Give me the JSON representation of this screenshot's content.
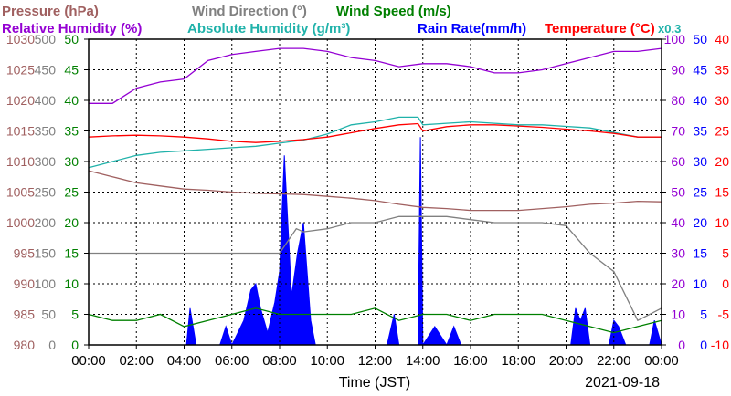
{
  "chart_data": {
    "type": "line",
    "title_rows": [
      [
        {
          "text": "Pressure (hPa)",
          "color": "#a06060"
        },
        {
          "text": "Wind Direction (°)",
          "color": "#808080"
        },
        {
          "text": "Wind Speed (m/s)",
          "color": "#008000"
        }
      ],
      [
        {
          "text": "Relative Humidity (%)",
          "color": "#9400d3"
        },
        {
          "text": "Absolute Humidity (g/m³)",
          "color": "#20b2aa"
        },
        {
          "text": "Rain Rate(mm/h)",
          "color": "#0000ff"
        },
        {
          "text": "Temperature (°C)",
          "color": "#ff0000"
        },
        {
          "text": "x0.3",
          "color": "#20b2aa"
        }
      ]
    ],
    "xlabel": "Time (JST)",
    "date": "2021-09-18",
    "x_ticks": [
      "00:00",
      "02:00",
      "04:00",
      "06:00",
      "08:00",
      "10:00",
      "12:00",
      "14:00",
      "16:00",
      "18:00",
      "20:00",
      "22:00",
      "00:00"
    ],
    "y_axes": {
      "pressure": {
        "color": "#a06060",
        "ticks": [
          "1030",
          "1025",
          "1020",
          "1015",
          "1010",
          "1005",
          "1000",
          "995",
          "990",
          "985",
          "980"
        ],
        "range": [
          980,
          1030
        ]
      },
      "wind_direction": {
        "color": "#808080",
        "ticks": [
          "500",
          "450",
          "400",
          "350",
          "300",
          "250",
          "200",
          "150",
          "100",
          "50",
          "0"
        ],
        "range": [
          0,
          500
        ]
      },
      "wind_speed": {
        "color": "#008000",
        "ticks": [
          "50",
          "45",
          "40",
          "35",
          "30",
          "25",
          "20",
          "15",
          "10",
          "5",
          "0"
        ],
        "range": [
          0,
          50
        ]
      },
      "humidity": {
        "color": "#9400d3",
        "ticks": [
          "100",
          "90",
          "80",
          "70",
          "60",
          "50",
          "40",
          "30",
          "20",
          "10",
          "0"
        ],
        "range": [
          0,
          100
        ]
      },
      "rain_rate": {
        "color": "#0000ff",
        "ticks": [
          "50",
          "45",
          "40",
          "35",
          "30",
          "25",
          "20",
          "15",
          "10",
          "5",
          "0"
        ],
        "range": [
          0,
          50
        ]
      },
      "temperature": {
        "color": "#ff0000",
        "ticks": [
          "40",
          "35",
          "30",
          "25",
          "20",
          "15",
          "10",
          "5",
          "0",
          "-5",
          "-10"
        ],
        "range": [
          -10,
          40
        ]
      }
    },
    "x_range_hours": [
      0,
      24
    ],
    "grid": true,
    "series": [
      {
        "name": "Pressure",
        "color": "#a06060",
        "axis": "pressure",
        "x": [
          0,
          1,
          2,
          3,
          4,
          5,
          6,
          7,
          8,
          9,
          10,
          11,
          12,
          13,
          14,
          15,
          16,
          17,
          18,
          19,
          20,
          21,
          22,
          23,
          24
        ],
        "y": [
          1008.5,
          1007.5,
          1006.5,
          1006,
          1005.5,
          1005.3,
          1005,
          1004.8,
          1004.7,
          1004.6,
          1004.3,
          1004,
          1003.6,
          1003,
          1002.5,
          1002.3,
          1002,
          1002,
          1002,
          1002.3,
          1002.6,
          1003,
          1003.2,
          1003.5,
          1003.4
        ]
      },
      {
        "name": "Relative Humidity",
        "color": "#9400d3",
        "axis": "humidity",
        "x": [
          0,
          1,
          2,
          3,
          4,
          5,
          5.5,
          6,
          7,
          8,
          9,
          10,
          11,
          12,
          12.5,
          13,
          14,
          15,
          16,
          17,
          18,
          19,
          20,
          21,
          22,
          23,
          24
        ],
        "y": [
          79,
          79,
          84,
          86,
          87,
          93,
          94,
          95,
          96,
          97,
          97,
          96,
          94,
          93,
          92,
          91,
          92,
          92,
          91,
          89,
          89,
          90,
          92,
          94,
          96,
          96,
          97
        ]
      },
      {
        "name": "Absolute Humidity",
        "color": "#20b2aa",
        "axis": "humidity",
        "x": [
          0,
          1,
          2,
          3,
          4,
          5,
          6,
          7,
          8,
          9,
          10,
          11,
          12,
          13,
          13.8,
          14,
          15,
          16,
          17,
          18,
          19,
          20,
          21,
          22,
          23,
          24
        ],
        "y": [
          58,
          60,
          62,
          63,
          63.5,
          64,
          64.5,
          65,
          66,
          67,
          69,
          72,
          73,
          74.5,
          74.5,
          72,
          72.5,
          73,
          72.5,
          72,
          72,
          71.5,
          71,
          69.5,
          68,
          68
        ]
      },
      {
        "name": "Temperature",
        "color": "#ff0000",
        "axis": "temperature",
        "x": [
          0,
          1,
          2,
          3,
          4,
          5,
          6,
          7,
          8,
          9,
          10,
          11,
          12,
          13,
          13.8,
          14,
          15,
          16,
          17,
          18,
          19,
          20,
          21,
          22,
          23,
          24
        ],
        "y": [
          24,
          24.2,
          24.3,
          24.2,
          24,
          23.7,
          23.3,
          23.1,
          23.3,
          23.6,
          24,
          24.7,
          25.4,
          26,
          26.2,
          25,
          25.7,
          26,
          26,
          25.8,
          25.6,
          25.3,
          25,
          24.6,
          24,
          24
        ]
      },
      {
        "name": "Wind Direction",
        "color": "#808080",
        "axis": "wind_direction",
        "x": [
          0,
          1,
          2,
          3,
          4,
          5,
          6,
          7,
          8,
          8.7,
          9,
          10,
          11,
          12,
          13,
          14,
          15,
          16,
          17,
          18,
          19,
          20,
          21,
          22,
          23,
          24
        ],
        "y": [
          150,
          150,
          150,
          150,
          150,
          150,
          150,
          150,
          150,
          190,
          185,
          190,
          200,
          200,
          210,
          210,
          210,
          205,
          200,
          200,
          200,
          195,
          150,
          120,
          40,
          60
        ]
      },
      {
        "name": "Wind Speed",
        "color": "#008000",
        "axis": "wind_speed",
        "x": [
          0,
          1,
          2,
          3,
          4,
          5,
          6,
          7,
          8,
          9,
          10,
          11,
          12,
          13,
          14,
          15,
          16,
          17,
          18,
          19,
          20,
          21,
          22,
          23,
          24
        ],
        "y": [
          5,
          4,
          4,
          5,
          3,
          4,
          5,
          6,
          5,
          5,
          5,
          5,
          6,
          4,
          5,
          5,
          4,
          5,
          5,
          5,
          4,
          3,
          2,
          3,
          4
        ]
      },
      {
        "name": "Rain Rate",
        "color": "#0000ff",
        "axis": "rain_rate",
        "style": "area",
        "x": [
          0,
          4.1,
          4.25,
          4.5,
          5.5,
          5.75,
          6,
          6.5,
          6.8,
          7,
          7.2,
          7.5,
          7.8,
          8,
          8.2,
          8.5,
          8.75,
          9,
          9.3,
          9.5,
          10,
          12.5,
          12.8,
          13,
          13.5,
          13.8,
          13.9,
          14,
          14.5,
          15,
          15.3,
          15.6,
          16,
          17,
          18,
          20.2,
          20.4,
          20.6,
          20.8,
          21,
          21.8,
          22,
          22.2,
          22.5,
          23.5,
          23.7,
          24
        ],
        "y": [
          0,
          0,
          6,
          0,
          0,
          3,
          0,
          4,
          9,
          10,
          6,
          2,
          7,
          12,
          31,
          8,
          15,
          20,
          4,
          0,
          0,
          0,
          5,
          0,
          0,
          0,
          34,
          0,
          3,
          0,
          3,
          0,
          0,
          0,
          0,
          0,
          6,
          4,
          6,
          0,
          0,
          4,
          3,
          0,
          0,
          4,
          0
        ]
      }
    ]
  }
}
